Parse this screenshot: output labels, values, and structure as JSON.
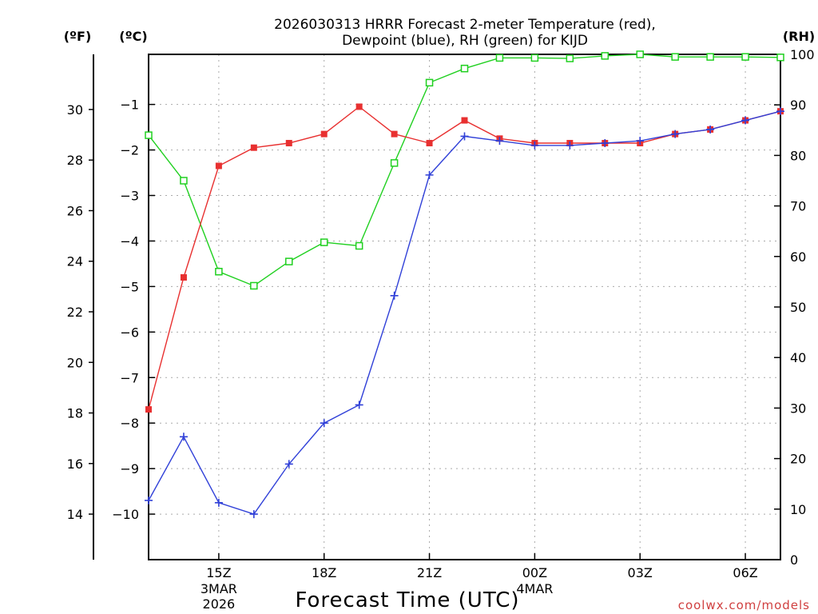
{
  "chart_data": {
    "type": "line",
    "title_line1": "2026030313 HRRR Forecast 2-meter Temperature (red),",
    "title_line2": "Dewpoint (blue), RH (green) for KIJD",
    "xlabel": "Forecast Time (UTC)",
    "credit": "coolwx.com/models",
    "unit_f": "(ºF)",
    "unit_c": "(ºC)",
    "unit_rh": "(RH)",
    "x_hours": [
      13,
      14,
      15,
      16,
      17,
      18,
      19,
      20,
      21,
      22,
      23,
      24,
      25,
      26,
      27,
      28,
      29,
      30,
      31
    ],
    "x_range": [
      13,
      31
    ],
    "x_ticks": [
      {
        "hour": 15,
        "label": "15Z",
        "sub1": "3MAR",
        "sub2": "2026"
      },
      {
        "hour": 18,
        "label": "18Z",
        "sub1": "",
        "sub2": ""
      },
      {
        "hour": 21,
        "label": "21Z",
        "sub1": "",
        "sub2": ""
      },
      {
        "hour": 24,
        "label": "00Z",
        "sub1": "4MAR",
        "sub2": ""
      },
      {
        "hour": 27,
        "label": "03Z",
        "sub1": "",
        "sub2": ""
      },
      {
        "hour": 30,
        "label": "06Z",
        "sub1": "",
        "sub2": ""
      }
    ],
    "c_range": [
      -11,
      0.1
    ],
    "c_ticks": [
      -1,
      -2,
      -3,
      -4,
      -5,
      -6,
      -7,
      -8,
      -9,
      -10
    ],
    "c_tick_labels": [
      "−1",
      "−2",
      "−3",
      "−4",
      "−5",
      "−6",
      "−7",
      "−8",
      "−9",
      "−10"
    ],
    "f_ticks": [
      14,
      16,
      18,
      20,
      22,
      24,
      26,
      28,
      30
    ],
    "rh_range": [
      0,
      100
    ],
    "rh_ticks": [
      0,
      10,
      20,
      30,
      40,
      50,
      60,
      70,
      80,
      90,
      100
    ],
    "series": [
      {
        "name": "Temperature",
        "unit": "C",
        "color": "#e83030",
        "marker": "filled-square",
        "values": [
          -7.7,
          -4.8,
          -2.35,
          -1.95,
          -1.85,
          -1.65,
          -1.05,
          -1.65,
          -1.85,
          -1.35,
          -1.75,
          -1.85,
          -1.85,
          -1.85,
          -1.85,
          -1.65,
          -1.55,
          -1.35,
          -1.15
        ]
      },
      {
        "name": "Dewpoint",
        "unit": "C",
        "color": "#3040d8",
        "marker": "plus",
        "values": [
          -9.7,
          -8.3,
          -9.75,
          -10.0,
          -8.9,
          -8.0,
          -7.6,
          -5.2,
          -2.55,
          -1.7,
          -1.8,
          -1.9,
          -1.9,
          -1.85,
          -1.8,
          -1.65,
          -1.55,
          -1.35,
          -1.15
        ]
      },
      {
        "name": "RH",
        "unit": "%",
        "color": "#20d020",
        "marker": "open-square",
        "values": [
          84,
          75,
          57,
          54.2,
          59,
          62.8,
          62.1,
          78.5,
          94.4,
          97.2,
          99.3,
          99.3,
          99.2,
          99.7,
          100,
          99.5,
          99.5,
          99.5,
          99.4
        ]
      }
    ]
  }
}
